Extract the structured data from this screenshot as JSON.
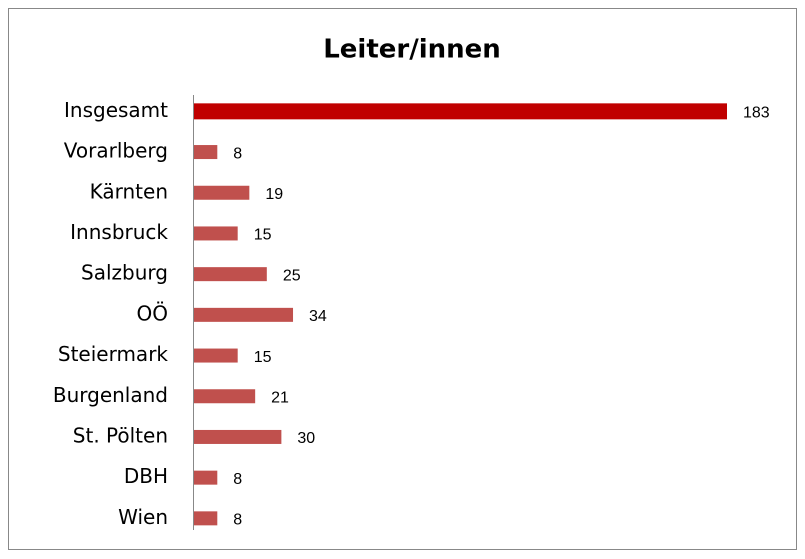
{
  "chart_data": {
    "type": "hbar",
    "title": "Leiter/innen",
    "categories": [
      "Insgesamt",
      "Vorarlberg",
      "Kärnten",
      "Innsbruck",
      "Salzburg",
      "OÖ",
      "Steiermark",
      "Burgenland",
      "St. Pölten",
      "DBH",
      "Wien"
    ],
    "values": [
      183,
      8,
      19,
      15,
      25,
      34,
      15,
      21,
      30,
      8,
      8
    ],
    "colors": [
      "#c00000",
      "#c0504d",
      "#c0504d",
      "#c0504d",
      "#c0504d",
      "#c0504d",
      "#c0504d",
      "#c0504d",
      "#c0504d",
      "#c0504d",
      "#c0504d"
    ]
  }
}
